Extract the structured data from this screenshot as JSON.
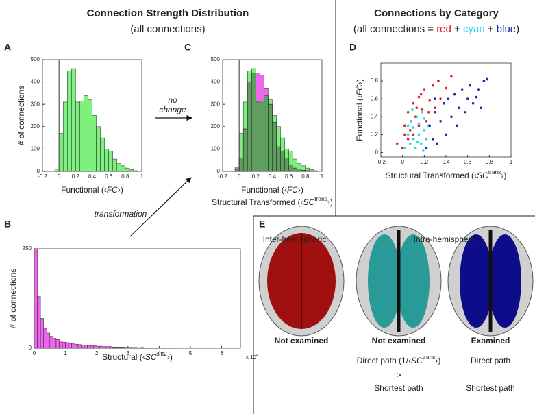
{
  "header": {
    "title_left": "Connection Strength Distribution",
    "subtitle_left": "(all connections)",
    "title_right": "Connections by Category",
    "subtitle_right_parts": [
      "(all connections = ",
      " + ",
      " + ",
      ")"
    ]
  },
  "annotations": {
    "no": "no",
    "change": "change",
    "transformation": "transformation"
  },
  "panel_e": {
    "panel": "E",
    "inter": "Inter-hemispheric",
    "intra": "Intra-hemispheric",
    "status": [
      "Not examined",
      "Not examined",
      "Examined"
    ],
    "rule_left": [
      "Direct path (1/‹",
      "SC",
      "trans",
      "›)"
    ],
    "rule_left_op": ">",
    "rule_left_short": "Shortest path",
    "rule_right": "Direct path",
    "rule_right_op": "=",
    "rule_right_short": "Shortest path"
  },
  "chart_data": [
    {
      "type": "histogram",
      "panel": "A",
      "bins": [
        -0.05,
        0,
        0.05,
        0.1,
        0.15,
        0.2,
        0.25,
        0.3,
        0.35,
        0.4,
        0.45,
        0.5,
        0.55,
        0.6,
        0.65,
        0.7,
        0.75,
        0.8,
        0.85,
        0.9,
        0.95
      ],
      "values": [
        10,
        170,
        310,
        450,
        460,
        310,
        315,
        340,
        320,
        250,
        200,
        150,
        100,
        90,
        55,
        35,
        25,
        15,
        8,
        3
      ],
      "color": "#7ef07e",
      "xlim": [
        -0.2,
        1
      ],
      "xticks": [
        -0.2,
        0,
        0.2,
        0.4,
        0.6,
        0.8,
        1
      ],
      "ylim": [
        0,
        500
      ],
      "yticks": [
        0,
        100,
        200,
        300,
        400,
        500
      ],
      "xlabel": [
        "Functional (‹",
        "FC",
        "›)"
      ],
      "ylabel": "# of connections"
    },
    {
      "type": "histogram",
      "panel": "C",
      "bins": [
        -0.05,
        0,
        0.05,
        0.1,
        0.15,
        0.2,
        0.25,
        0.3,
        0.35,
        0.4,
        0.45,
        0.5,
        0.55,
        0.6,
        0.65,
        0.7,
        0.75,
        0.8,
        0.85,
        0.9,
        0.95
      ],
      "series": [
        {
          "color": "#7ef07e",
          "values": [
            10,
            170,
            310,
            450,
            460,
            310,
            315,
            340,
            320,
            250,
            200,
            150,
            100,
            90,
            55,
            35,
            25,
            15,
            8,
            3
          ]
        },
        {
          "color": "#ee66ee",
          "values": [
            20,
            60,
            190,
            400,
            440,
            440,
            430,
            370,
            300,
            220,
            110,
            90,
            60,
            30,
            15,
            10,
            5,
            3,
            1,
            0
          ]
        }
      ],
      "overlap_color": "#5e9e5e",
      "xlim": [
        -0.2,
        1
      ],
      "xticks": [
        -0.2,
        0,
        0.2,
        0.4,
        0.6,
        0.8,
        1
      ],
      "ylim": [
        0,
        500
      ],
      "yticks": [
        0,
        100,
        200,
        300,
        400,
        500
      ],
      "xlabel": [
        "Functional (‹",
        "FC",
        "›)"
      ],
      "xlabel2": [
        "Structural Transformed (‹",
        "SC",
        "trans",
        "›)"
      ]
    },
    {
      "type": "scatter",
      "panel": "D",
      "series": [
        {
          "name": "red",
          "color": "#e02020",
          "x": [
            -0.05,
            0,
            0.02,
            0.05,
            0.05,
            0.08,
            0.1,
            0.1,
            0.12,
            0.15,
            0.15,
            0.18,
            0.2,
            0.22,
            0.25,
            0.28,
            0.3,
            0.33,
            0.02,
            0.07,
            0.13,
            0.17,
            0.24,
            0.35,
            0.4,
            0.45
          ],
          "values": [
            0.1,
            0.05,
            0.3,
            0.15,
            0.45,
            0.35,
            0.2,
            0.55,
            0.4,
            0.3,
            0.62,
            0.48,
            0.7,
            0.35,
            0.58,
            0.75,
            0.5,
            0.8,
            0.2,
            0.25,
            0.5,
            0.65,
            0.45,
            0.6,
            0.72,
            0.85
          ]
        },
        {
          "name": "cyan",
          "color": "#20d8e8",
          "x": [
            0.02,
            0.05,
            0.07,
            0.08,
            0.1,
            0.1,
            0.12,
            0.13,
            0.15,
            0.15,
            0.17,
            0.18,
            0.2,
            0.2,
            0.22,
            0.05,
            0.09,
            0.14,
            0.19,
            0.24
          ],
          "values": [
            0.05,
            0.2,
            0.1,
            0.35,
            0.15,
            0.28,
            0.05,
            0.4,
            0.2,
            0.32,
            0.1,
            0.45,
            0.25,
            0.38,
            0.15,
            0.3,
            0.48,
            0.12,
            0.02,
            0.3
          ]
        },
        {
          "name": "blue",
          "color": "#1a2ab0",
          "x": [
            0.22,
            0.25,
            0.28,
            0.3,
            0.32,
            0.35,
            0.38,
            0.4,
            0.42,
            0.45,
            0.48,
            0.5,
            0.52,
            0.55,
            0.58,
            0.6,
            0.62,
            0.65,
            0.68,
            0.7,
            0.72,
            0.75,
            0.78,
            0.3
          ],
          "values": [
            0.05,
            0.3,
            0.15,
            0.45,
            0.1,
            0.35,
            0.55,
            0.2,
            0.6,
            0.4,
            0.65,
            0.3,
            0.5,
            0.7,
            0.45,
            0.6,
            0.75,
            0.55,
            0.62,
            0.7,
            0.5,
            0.8,
            0.82,
            0.6
          ]
        }
      ],
      "xlim": [
        -0.2,
        1
      ],
      "xticks": [
        -0.2,
        0,
        0.2,
        0.4,
        0.6,
        0.8,
        1
      ],
      "ylim": [
        -0.05,
        1
      ],
      "yticks": [
        0,
        0.2,
        0.4,
        0.6,
        0.8
      ],
      "xlabel": [
        "Structural Transformed (‹",
        "SC",
        "trans",
        "›)"
      ],
      "ylabel": [
        "Functional (‹",
        "FC",
        "›)"
      ]
    },
    {
      "type": "histogram",
      "panel": "B",
      "bins": [
        0,
        0.1,
        0.2,
        0.3,
        0.4,
        0.5,
        0.6,
        0.7,
        0.8,
        0.9,
        1,
        1.1,
        1.2,
        1.3,
        1.4,
        1.5,
        1.6,
        1.7,
        1.8,
        1.9,
        2,
        2.1,
        2.2,
        2.3,
        2.4,
        2.5,
        2.6,
        2.7,
        2.8,
        2.9,
        3,
        3.1,
        3.2,
        3.3,
        3.4,
        3.5,
        3.6,
        3.7,
        3.8,
        3.9,
        4,
        4.1,
        4.2,
        4.3,
        4.4,
        4.5
      ],
      "values": [
        250,
        130,
        75,
        50,
        38,
        30,
        25,
        22,
        18,
        15,
        14,
        12,
        11,
        10,
        9,
        8,
        8,
        7,
        6,
        6,
        5,
        5,
        4,
        4,
        4,
        3,
        3,
        3,
        3,
        2,
        2,
        2,
        2,
        1,
        2,
        1,
        1,
        1,
        1,
        1,
        0,
        1,
        0,
        1,
        1
      ],
      "color": "#ee66ee",
      "xlim": [
        0,
        6.6
      ],
      "xticks": [
        0,
        1,
        2,
        3,
        4,
        5,
        6
      ],
      "ylim": [
        0,
        250
      ],
      "yticks": [
        0,
        250
      ],
      "xscale": [
        "x 10",
        "4"
      ],
      "xlabel": [
        "Structural (‹",
        "SC",
        "sift2",
        "›)"
      ],
      "ylabel": "# of connections"
    }
  ]
}
